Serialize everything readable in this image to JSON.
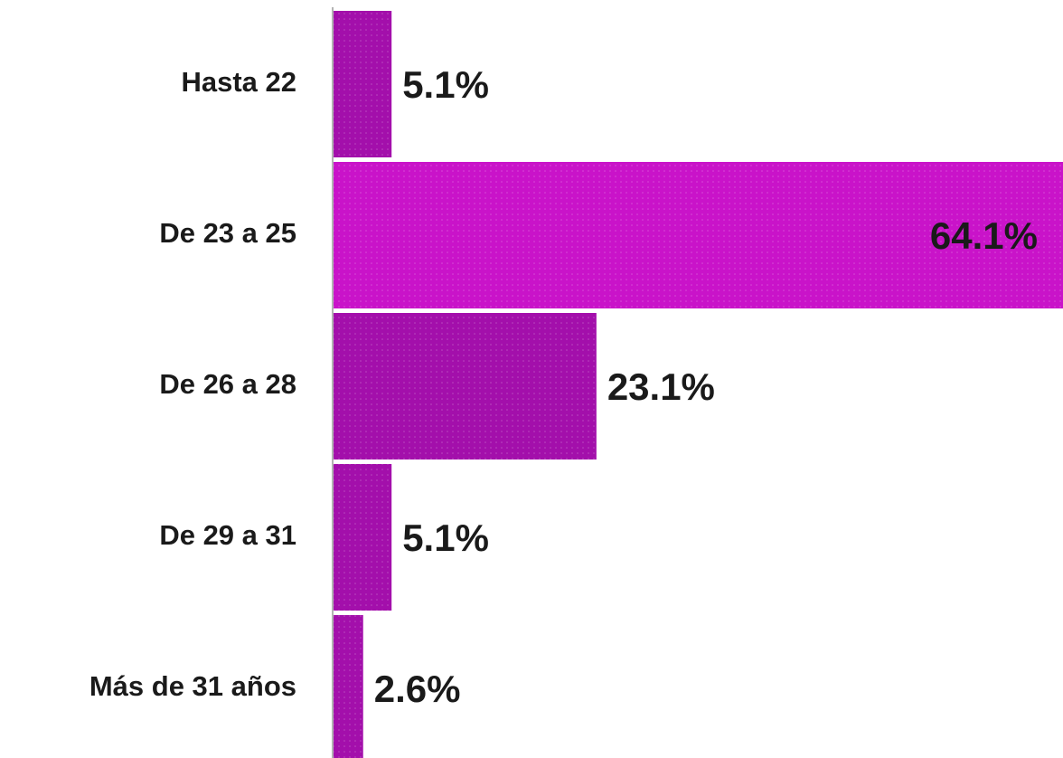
{
  "chart_data": {
    "type": "barh",
    "categories": [
      "Hasta 22",
      "De 23 a 25",
      "De 26 a 28",
      "De 29 a 31",
      "Más de 31 años"
    ],
    "values": [
      5.1,
      64.1,
      23.1,
      5.1,
      2.6
    ],
    "value_labels": [
      "5.1%",
      "64.1%",
      "23.1%",
      "5.1%",
      "2.6%"
    ],
    "colors": [
      "#a30fab",
      "#c913c9",
      "#a30fab",
      "#a30fab",
      "#a30fab"
    ]
  }
}
